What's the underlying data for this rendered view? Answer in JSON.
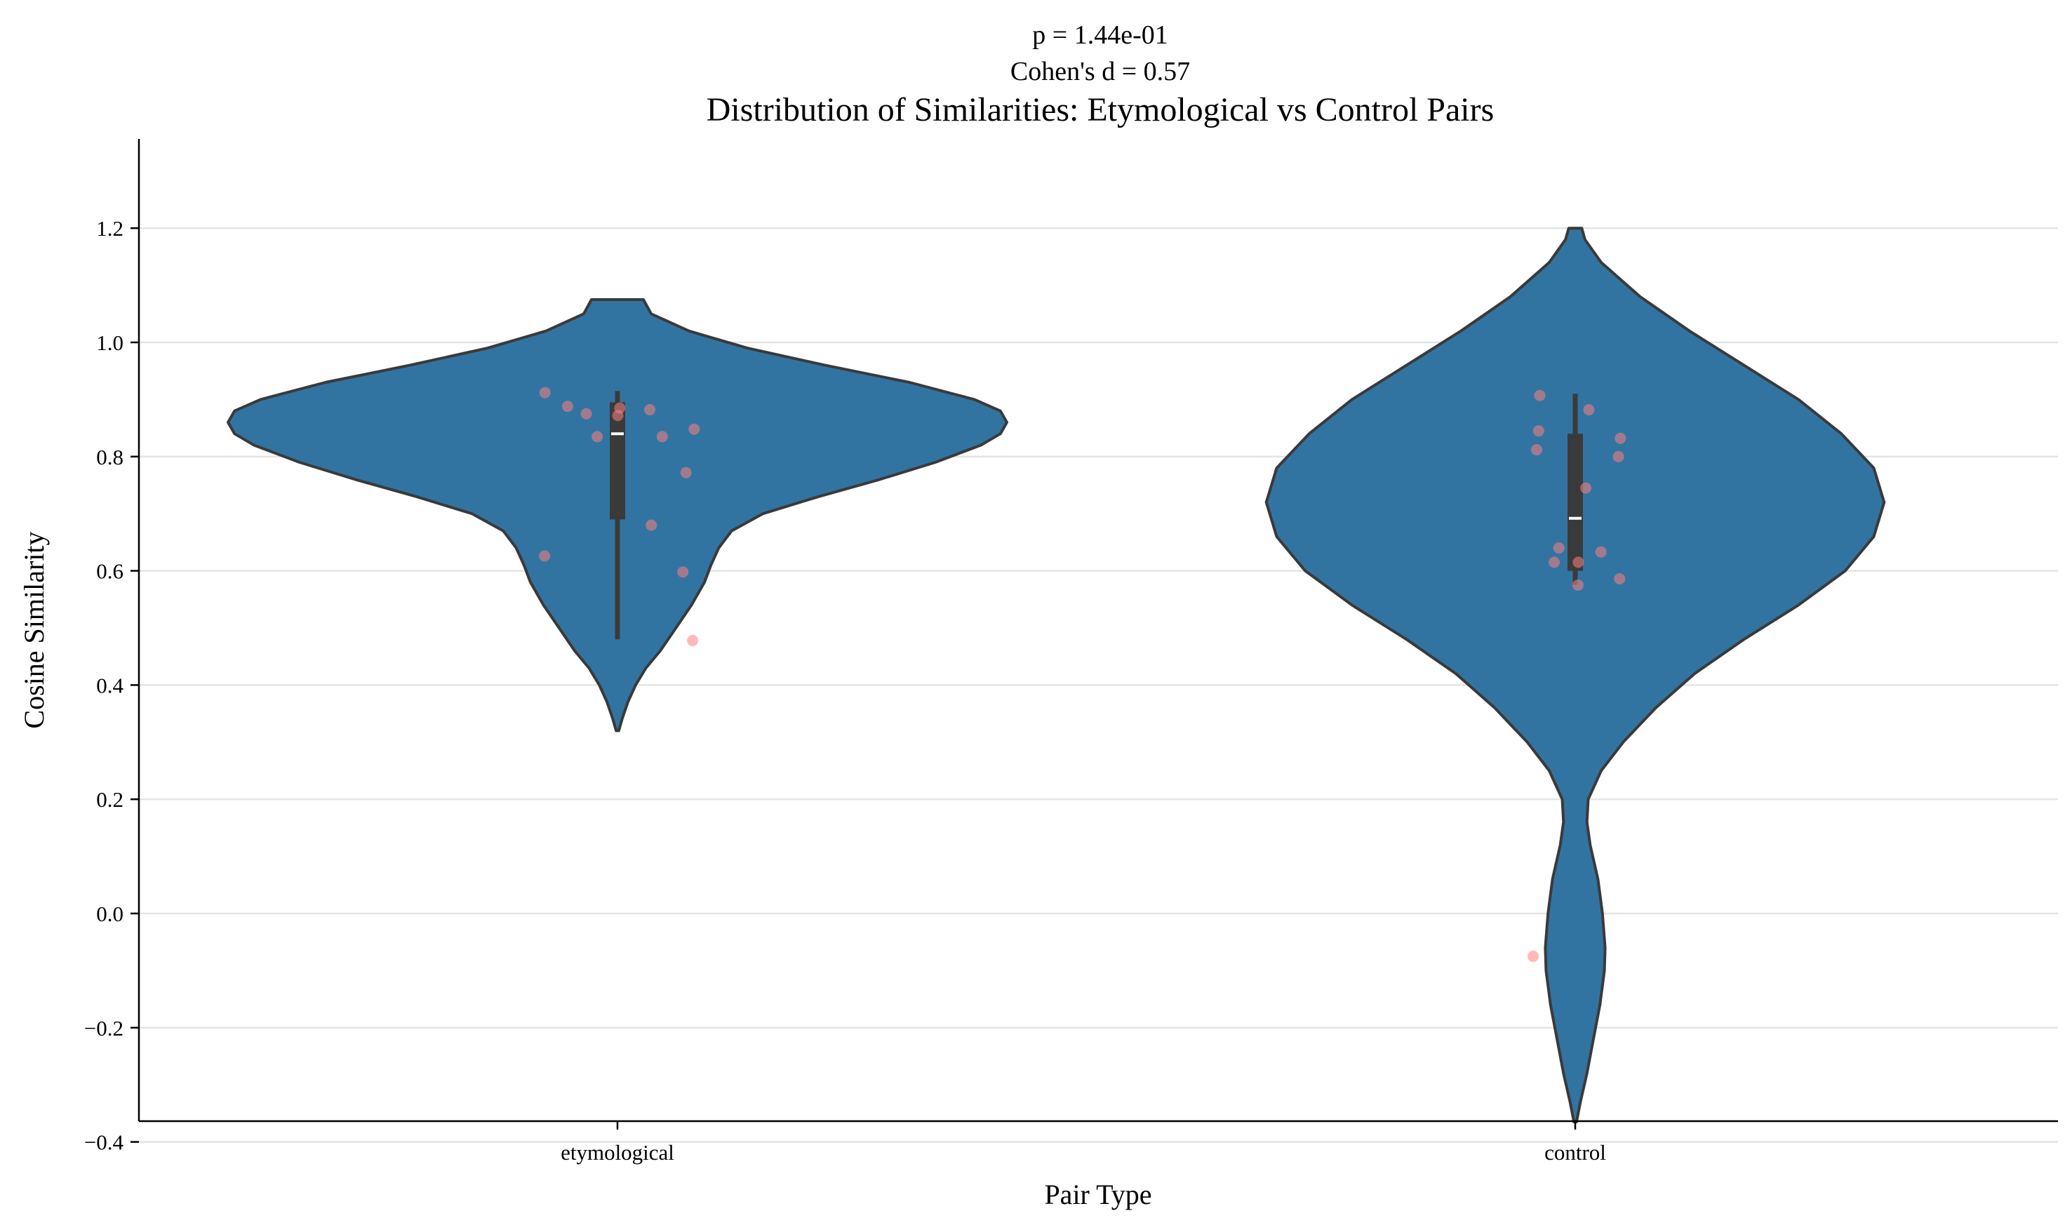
{
  "chart_data": {
    "type": "violin",
    "subtitle_lines": [
      "p = 1.44e-01",
      "Cohen's d = 0.57"
    ],
    "title": "Distribution of Similarities: Etymological vs Control Pairs",
    "xlabel": "Pair Type",
    "ylabel": "Cosine Similarity",
    "ylim": [
      -0.44,
      1.28
    ],
    "yticks": [
      -0.4,
      -0.2,
      0.0,
      0.2,
      0.4,
      0.6,
      0.8,
      1.0,
      1.2
    ],
    "ytick_labels": [
      "−0.4",
      "−0.2",
      "0.0",
      "0.2",
      "0.4",
      "0.6",
      "0.8",
      "1.0",
      "1.2"
    ],
    "grid": "horizontal",
    "colors": {
      "violin": "#3274a1",
      "outline": "#3a3a3a",
      "points": "#ff7f7f",
      "box": "#3a3a3a",
      "median": "#ffffff",
      "grid": "#e4e4e4"
    },
    "categories": [
      "etymological",
      "control"
    ],
    "violins": [
      {
        "category": "etymological",
        "range": [
          0.32,
          1.075
        ],
        "density": [
          [
            0.32,
            0.01
          ],
          [
            0.34,
            0.035
          ],
          [
            0.37,
            0.08
          ],
          [
            0.4,
            0.14
          ],
          [
            0.43,
            0.22
          ],
          [
            0.46,
            0.33
          ],
          [
            0.5,
            0.45
          ],
          [
            0.54,
            0.57
          ],
          [
            0.58,
            0.67
          ],
          [
            0.61,
            0.72
          ],
          [
            0.64,
            0.78
          ],
          [
            0.67,
            0.88
          ],
          [
            0.7,
            1.12
          ],
          [
            0.73,
            1.55
          ],
          [
            0.76,
            2.02
          ],
          [
            0.79,
            2.45
          ],
          [
            0.82,
            2.8
          ],
          [
            0.84,
            2.95
          ],
          [
            0.86,
            3.0
          ],
          [
            0.88,
            2.95
          ],
          [
            0.9,
            2.75
          ],
          [
            0.93,
            2.25
          ],
          [
            0.96,
            1.6
          ],
          [
            0.99,
            1.0
          ],
          [
            1.02,
            0.55
          ],
          [
            1.05,
            0.26
          ],
          [
            1.075,
            0.2
          ]
        ],
        "box": {
          "q1": 0.69,
          "median": 0.84,
          "q3": 0.895,
          "whisker_low": 0.48,
          "whisker_high": 0.915
        },
        "points": [
          [
            -0.186,
            0.912
          ],
          [
            -0.128,
            0.888
          ],
          [
            -0.08,
            0.875
          ],
          [
            -0.052,
            0.835
          ],
          [
            -0.187,
            0.626
          ],
          [
            0.006,
            0.885
          ],
          [
            0.001,
            0.872
          ],
          [
            0.083,
            0.882
          ],
          [
            0.115,
            0.835
          ],
          [
            0.197,
            0.848
          ],
          [
            0.176,
            0.772
          ],
          [
            0.087,
            0.68
          ],
          [
            0.168,
            0.598
          ],
          [
            0.193,
            0.478
          ]
        ]
      },
      {
        "category": "control",
        "range": [
          -0.365,
          1.2
        ],
        "density": [
          [
            -0.365,
            0.01
          ],
          [
            -0.33,
            0.04
          ],
          [
            -0.28,
            0.09
          ],
          [
            -0.22,
            0.14
          ],
          [
            -0.16,
            0.19
          ],
          [
            -0.1,
            0.225
          ],
          [
            -0.06,
            0.23
          ],
          [
            0.0,
            0.21
          ],
          [
            0.06,
            0.175
          ],
          [
            0.12,
            0.115
          ],
          [
            0.16,
            0.09
          ],
          [
            0.2,
            0.1
          ],
          [
            0.25,
            0.2
          ],
          [
            0.3,
            0.37
          ],
          [
            0.36,
            0.62
          ],
          [
            0.42,
            0.92
          ],
          [
            0.48,
            1.3
          ],
          [
            0.54,
            1.72
          ],
          [
            0.6,
            2.08
          ],
          [
            0.66,
            2.3
          ],
          [
            0.72,
            2.38
          ],
          [
            0.78,
            2.3
          ],
          [
            0.84,
            2.05
          ],
          [
            0.9,
            1.72
          ],
          [
            0.96,
            1.3
          ],
          [
            1.02,
            0.88
          ],
          [
            1.08,
            0.5
          ],
          [
            1.14,
            0.2
          ],
          [
            1.18,
            0.075
          ],
          [
            1.2,
            0.05
          ]
        ],
        "box": {
          "q1": 0.6,
          "median": 0.692,
          "q3": 0.84,
          "whisker_low": 0.575,
          "whisker_high": 0.91
        },
        "points": [
          [
            -0.091,
            0.907
          ],
          [
            -0.094,
            0.845
          ],
          [
            -0.099,
            0.812
          ],
          [
            -0.042,
            0.64
          ],
          [
            -0.054,
            0.615
          ],
          [
            0.035,
            0.882
          ],
          [
            0.116,
            0.832
          ],
          [
            0.111,
            0.8
          ],
          [
            0.066,
            0.633
          ],
          [
            0.114,
            0.586
          ],
          [
            0.027,
            0.745
          ],
          [
            0.008,
            0.615
          ],
          [
            0.007,
            0.575
          ],
          [
            -0.108,
            -0.075
          ]
        ]
      }
    ]
  }
}
